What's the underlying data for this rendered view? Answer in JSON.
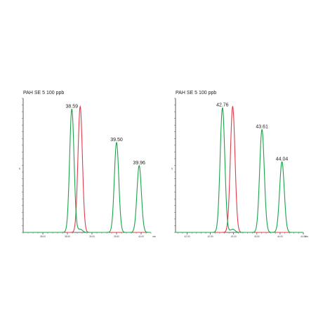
{
  "chart_data": [
    {
      "type": "line",
      "title": "PAH SE 5 100 ppb",
      "x_unit": "min",
      "x_ticks": [
        "38.00",
        "38.50",
        "39.00",
        "39.50",
        "40.00"
      ],
      "xlim": [
        37.6,
        40.2
      ],
      "ylim": [
        0,
        1
      ],
      "y_ticks": [
        0.5
      ],
      "y_tick_labels": [
        "5"
      ],
      "grid": false,
      "series": [
        {
          "color": "#1aa34a",
          "peaks": [
            {
              "x": 38.59,
              "height": 0.96,
              "label": "38.59"
            },
            {
              "x": 38.76,
              "height": 0.025,
              "label": ""
            },
            {
              "x": 39.5,
              "height": 0.7,
              "label": "39.50"
            },
            {
              "x": 39.96,
              "height": 0.52,
              "label": "39.96"
            }
          ]
        },
        {
          "color": "#e03c4b",
          "peaks": [
            {
              "x": 38.76,
              "height": 0.98,
              "label": ""
            }
          ]
        }
      ]
    },
    {
      "type": "line",
      "title": "PAH SE 5 100 ppb",
      "x_unit": "min",
      "x_ticks": [
        "42.00",
        "42.50",
        "43.00",
        "43.50",
        "44.00",
        "44.50"
      ],
      "xlim": [
        41.75,
        44.5
      ],
      "ylim": [
        0,
        1
      ],
      "y_ticks": [
        0.5
      ],
      "y_tick_labels": [
        "5"
      ],
      "grid": false,
      "series": [
        {
          "color": "#1aa34a",
          "peaks": [
            {
              "x": 42.76,
              "height": 0.97,
              "label": "42.76"
            },
            {
              "x": 42.98,
              "height": 0.025,
              "label": ""
            },
            {
              "x": 43.61,
              "height": 0.8,
              "label": "43.61"
            },
            {
              "x": 44.04,
              "height": 0.55,
              "label": "44.04"
            }
          ]
        },
        {
          "color": "#e03c4b",
          "peaks": [
            {
              "x": 42.98,
              "height": 0.98,
              "label": ""
            }
          ]
        }
      ]
    }
  ]
}
